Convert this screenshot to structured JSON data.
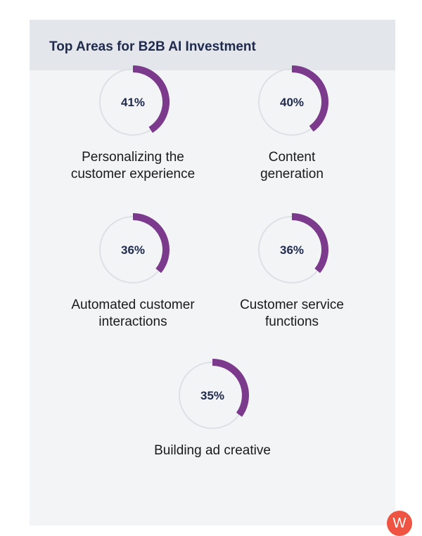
{
  "chart_data": {
    "type": "donut",
    "title": "Top Areas for B2B AI Investment",
    "categories": [
      "Personalizing the customer experience",
      "Content generation",
      "Automated customer interactions",
      "Customer service functions",
      "Building ad creative"
    ],
    "label_lines": [
      [
        "Personalizing the",
        "customer experience"
      ],
      [
        "Content",
        "generation"
      ],
      [
        "Automated customer",
        "interactions"
      ],
      [
        "Customer service",
        "functions"
      ],
      [
        "Building ad creative"
      ]
    ],
    "values": [
      41,
      40,
      36,
      36,
      35
    ],
    "value_labels": [
      "41%",
      "40%",
      "36%",
      "36%",
      "35%"
    ],
    "unit": "%",
    "max": 100
  },
  "colors": {
    "accent": "#7b3a8c",
    "track": "#dde1e6",
    "text": "#1f2a4d",
    "logo": "#ef5341"
  },
  "logo": {
    "letter": "W"
  }
}
